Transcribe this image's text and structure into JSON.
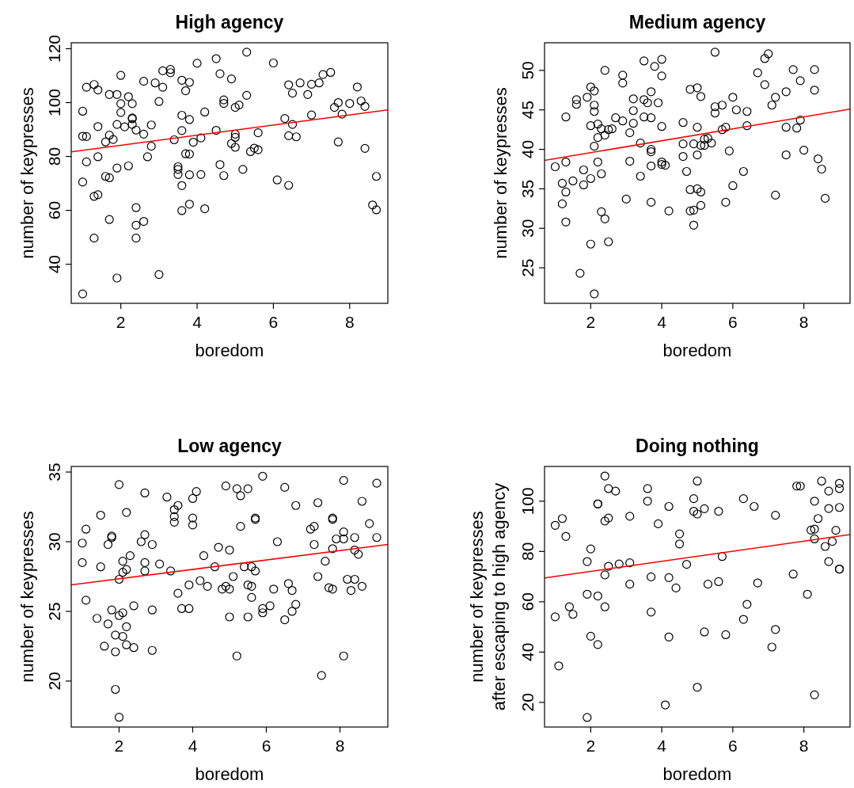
{
  "chart_data": [
    {
      "type": "scatter",
      "title": "High agency",
      "xlabel": "boredom",
      "ylabel": "number of keypresses",
      "xlim": [
        0.7,
        9.0
      ],
      "ylim": [
        25.5,
        122.2
      ],
      "xticks": [
        2,
        4,
        6,
        8
      ],
      "yticks": [
        40,
        60,
        80,
        100,
        120
      ],
      "series": [
        {
          "type": "scatter",
          "color": "#000000",
          "marker": "circle",
          "x": [
            1.0,
            1.0,
            1.1,
            1.0,
            1.0,
            1.1,
            1.3,
            1.4,
            1.4,
            1.1,
            1.4,
            1.3,
            1.4,
            1.3,
            1.6,
            1.7,
            1.9,
            1.7,
            1.8,
            1.9,
            1.6,
            1.7,
            1.9,
            1.7,
            1.9,
            2.0,
            2.0,
            2.0,
            2.1,
            2.2,
            2.3,
            2.3,
            2.3,
            2.3,
            2.4,
            2.2,
            2.4,
            2.4,
            2.4,
            2.6,
            2.6,
            2.6,
            2.8,
            2.8,
            2.7,
            2.9,
            3.1,
            3.1,
            3.0,
            3.0,
            3.3,
            3.3,
            3.4,
            3.5,
            3.5,
            3.5,
            3.6,
            3.6,
            3.6,
            3.6,
            3.6,
            3.7,
            3.7,
            3.8,
            3.8,
            3.8,
            3.8,
            3.8,
            3.9,
            4.0,
            4.1,
            4.1,
            4.2,
            4.2,
            4.5,
            4.5,
            4.6,
            4.6,
            4.7,
            4.7,
            4.7,
            4.9,
            4.9,
            5.0,
            5.0,
            5.0,
            5.0,
            5.1,
            5.2,
            5.3,
            5.3,
            5.4,
            5.5,
            5.6,
            5.6,
            6.0,
            6.1,
            6.3,
            6.4,
            6.4,
            6.4,
            6.5,
            6.5,
            6.6,
            6.7,
            6.9,
            7.0,
            7.0,
            7.2,
            7.3,
            7.5,
            7.6,
            7.7,
            7.7,
            7.8,
            8.0,
            8.2,
            8.3,
            8.4,
            8.4,
            8.6,
            8.7,
            8.7
          ],
          "values": [
            96.8,
            87.5,
            87.4,
            70.5,
            29.0,
            105.7,
            106.7,
            104.7,
            91.1,
            78.0,
            79.9,
            65.2,
            65.8,
            49.7,
            85.4,
            103.0,
            103.0,
            87.9,
            86.3,
            91.9,
            72.6,
            72.1,
            75.7,
            56.6,
            34.9,
            110.1,
            99.6,
            96.3,
            91.0,
            102.2,
            99.6,
            94.3,
            94.0,
            91.9,
            89.8,
            76.5,
            61.0,
            54.5,
            49.7,
            55.9,
            107.9,
            88.3,
            91.7,
            83.8,
            79.9,
            107.3,
            111.8,
            105.7,
            100.4,
            36.2,
            112.3,
            111.1,
            86.2,
            76.2,
            75.2,
            73.3,
            108.3,
            95.3,
            89.6,
            69.2,
            59.9,
            104.4,
            81.0,
            80.9,
            107.5,
            93.7,
            73.2,
            62.3,
            85.3,
            114.6,
            86.9,
            73.3,
            96.5,
            60.6,
            116.3,
            89.7,
            110.7,
            77.0,
            101.0,
            99.7,
            72.9,
            108.8,
            84.8,
            98.2,
            88.3,
            87.1,
            83.4,
            99.1,
            75.2,
            118.7,
            102.7,
            81.8,
            83.1,
            82.5,
            88.8,
            114.7,
            71.3,
            94.1,
            106.6,
            87.7,
            69.3,
            103.5,
            91.9,
            87.3,
            107.3,
            103.0,
            106.8,
            95.4,
            107.3,
            110.4,
            111.2,
            98.2,
            100.0,
            85.4,
            95.7,
            99.7,
            105.8,
            100.6,
            98.6,
            83.0,
            62.0,
            60.2,
            72.6
          ]
        },
        {
          "type": "line",
          "color": "#ff0000",
          "line_style": "solid",
          "x": [
            0.7,
            9.0
          ],
          "values": [
            81.7,
            97.3
          ]
        }
      ]
    },
    {
      "type": "scatter",
      "title": "Medium agency",
      "xlabel": "boredom",
      "ylabel": "number of keypresses",
      "xlim": [
        0.7,
        9.3
      ],
      "ylim": [
        20.5,
        53.5
      ],
      "xticks": [
        2,
        4,
        6,
        8
      ],
      "yticks": [
        25,
        30,
        35,
        40,
        45,
        50
      ],
      "series": [
        {
          "type": "scatter",
          "color": "#000000",
          "marker": "circle",
          "x": [
            1.0,
            1.2,
            1.2,
            1.3,
            1.3,
            1.3,
            1.3,
            1.5,
            1.6,
            1.6,
            1.7,
            1.8,
            1.8,
            1.9,
            2.0,
            2.0,
            2.0,
            2.0,
            2.1,
            2.1,
            2.1,
            2.1,
            2.1,
            2.2,
            2.2,
            2.2,
            2.3,
            2.3,
            2.3,
            2.4,
            2.4,
            2.4,
            2.5,
            2.5,
            2.6,
            2.7,
            2.9,
            2.9,
            2.9,
            3.0,
            3.1,
            3.1,
            3.2,
            3.2,
            3.2,
            3.4,
            3.4,
            3.5,
            3.5,
            3.5,
            3.6,
            3.7,
            3.7,
            3.7,
            3.7,
            3.7,
            3.7,
            3.8,
            3.9,
            4.0,
            4.0,
            4.0,
            4.0,
            4.0,
            4.1,
            4.2,
            4.6,
            4.6,
            4.6,
            4.7,
            4.8,
            4.8,
            4.8,
            4.9,
            4.9,
            4.9,
            5.0,
            5.0,
            5.0,
            5.0,
            5.1,
            5.1,
            5.1,
            5.1,
            5.2,
            5.2,
            5.3,
            5.4,
            5.5,
            5.5,
            5.5,
            5.7,
            5.7,
            5.8,
            5.8,
            5.9,
            6.0,
            6.0,
            6.1,
            6.3,
            6.4,
            6.4,
            6.7,
            6.9,
            6.9,
            7.0,
            7.1,
            7.2,
            7.2,
            7.5,
            7.5,
            7.5,
            7.7,
            7.8,
            7.9,
            7.9,
            8.0,
            8.3,
            8.3,
            8.4,
            8.5,
            8.6
          ],
          "values": [
            37.8,
            35.7,
            33.1,
            44.1,
            38.4,
            34.6,
            30.8,
            36.0,
            46.3,
            45.7,
            24.3,
            37.4,
            35.5,
            46.6,
            47.9,
            43.0,
            36.3,
            28.0,
            47.4,
            45.6,
            44.8,
            40.4,
            21.7,
            43.2,
            41.5,
            38.4,
            42.6,
            36.9,
            32.1,
            50.0,
            41.8,
            31.2,
            42.5,
            28.3,
            42.6,
            44.0,
            49.4,
            48.4,
            43.6,
            33.7,
            42.1,
            38.5,
            46.4,
            44.9,
            43.3,
            40.8,
            36.6,
            51.2,
            46.3,
            44.1,
            45.9,
            47.3,
            44.0,
            40.0,
            39.7,
            37.9,
            33.3,
            50.5,
            45.9,
            51.4,
            49.3,
            42.9,
            38.4,
            38.1,
            38.0,
            32.2,
            43.4,
            40.7,
            39.1,
            37.2,
            47.6,
            34.9,
            32.2,
            40.7,
            32.3,
            30.4,
            47.8,
            42.8,
            39.3,
            35.0,
            46.7,
            40.5,
            34.6,
            32.9,
            41.3,
            40.5,
            41.4,
            40.8,
            52.3,
            45.4,
            44.6,
            45.6,
            42.5,
            42.8,
            33.3,
            39.8,
            46.6,
            35.4,
            45.0,
            37.2,
            44.8,
            43.0,
            49.7,
            51.5,
            48.2,
            52.1,
            45.6,
            46.6,
            34.2,
            47.3,
            42.8,
            39.3,
            50.1,
            42.7,
            48.7,
            43.7,
            39.9,
            50.1,
            47.5,
            38.8,
            37.5,
            33.8
          ]
        },
        {
          "type": "line",
          "color": "#ff0000",
          "line_style": "solid",
          "x": [
            0.7,
            9.3
          ],
          "values": [
            38.6,
            45.1
          ]
        }
      ]
    },
    {
      "type": "scatter",
      "title": "Low agency",
      "xlabel": "boredom",
      "ylabel": "number of keypresses",
      "xlim": [
        0.7,
        9.3
      ],
      "ylim": [
        16.7,
        35.4
      ],
      "xticks": [
        2,
        4,
        6,
        8
      ],
      "yticks": [
        20,
        25,
        30,
        35
      ],
      "series": [
        {
          "type": "scatter",
          "color": "#000000",
          "marker": "circle",
          "x": [
            1.0,
            1.0,
            1.1,
            1.1,
            1.4,
            1.5,
            1.5,
            1.6,
            1.7,
            1.7,
            1.8,
            1.8,
            1.8,
            1.9,
            1.9,
            1.9,
            2.0,
            2.0,
            2.0,
            2.0,
            2.1,
            2.1,
            2.1,
            2.1,
            2.2,
            2.2,
            2.2,
            2.2,
            2.3,
            2.4,
            2.4,
            2.6,
            2.7,
            2.7,
            2.7,
            2.7,
            2.9,
            2.9,
            2.9,
            3.1,
            3.3,
            3.4,
            3.5,
            3.5,
            3.5,
            3.6,
            3.6,
            3.7,
            3.9,
            3.9,
            4.0,
            4.0,
            4.0,
            4.1,
            4.2,
            4.3,
            4.4,
            4.6,
            4.7,
            4.8,
            4.9,
            4.9,
            5.0,
            5.0,
            5.0,
            5.1,
            5.2,
            5.2,
            5.3,
            5.3,
            5.4,
            5.5,
            5.5,
            5.6,
            5.6,
            5.5,
            5.6,
            5.7,
            5.7,
            5.7,
            5.9,
            5.9,
            5.9,
            6.1,
            6.2,
            6.3,
            6.5,
            6.5,
            6.6,
            6.7,
            6.7,
            6.8,
            6.8,
            7.2,
            7.3,
            7.3,
            7.4,
            7.4,
            7.5,
            7.6,
            7.7,
            7.8,
            7.8,
            7.8,
            7.8,
            7.9,
            8.1,
            8.1,
            8.1,
            8.1,
            8.2,
            8.3,
            8.4,
            8.4,
            8.4,
            8.5,
            8.6,
            8.6,
            8.8,
            9.0,
            9.0
          ],
          "values": [
            29.9,
            28.5,
            30.9,
            25.8,
            24.5,
            31.9,
            28.2,
            22.5,
            24.1,
            29.8,
            30.3,
            30.4,
            25.1,
            23.3,
            22.1,
            19.4,
            34.1,
            27.3,
            24.7,
            17.4,
            28.6,
            27.8,
            24.9,
            23.2,
            32.1,
            28.0,
            22.6,
            23.9,
            29.0,
            25.4,
            22.4,
            30.0,
            33.5,
            30.5,
            28.5,
            27.9,
            29.8,
            25.1,
            22.2,
            28.4,
            33.2,
            27.9,
            31.8,
            32.3,
            31.4,
            26.3,
            32.6,
            25.2,
            26.9,
            25.2,
            33.1,
            31.7,
            31.2,
            33.6,
            27.2,
            29.0,
            26.8,
            28.2,
            29.6,
            26.6,
            34.0,
            26.8,
            29.4,
            26.6,
            24.6,
            27.5,
            33.8,
            21.8,
            33.3,
            31.1,
            28.2,
            33.8,
            26.9,
            26.8,
            26.0,
            24.6,
            28.2,
            27.9,
            31.7,
            31.6,
            34.7,
            25.2,
            24.9,
            25.4,
            26.6,
            30.0,
            24.4,
            33.9,
            27.0,
            25.0,
            26.5,
            32.6,
            25.5,
            30.9,
            29.8,
            31.1,
            32.8,
            27.5,
            20.4,
            28.6,
            26.7,
            29.5,
            31.7,
            31.6,
            26.6,
            30.2,
            30.2,
            34.4,
            30.7,
            21.8,
            27.3,
            26.5,
            29.4,
            27.3,
            30.3,
            29.1,
            32.9,
            26.8,
            31.3,
            34.2,
            30.3
          ]
        },
        {
          "type": "line",
          "color": "#ff0000",
          "line_style": "solid",
          "x": [
            0.7,
            9.3
          ],
          "values": [
            26.9,
            29.8
          ]
        }
      ]
    },
    {
      "type": "scatter",
      "title": "Doing nothing",
      "xlabel": "boredom",
      "ylabel": "number of keypresses\nafter escaping to high agency",
      "xlim": [
        0.7,
        9.3
      ],
      "ylim": [
        10.2,
        113.8
      ],
      "xticks": [
        2,
        4,
        6,
        8
      ],
      "yticks": [
        20,
        40,
        60,
        80,
        100
      ],
      "series": [
        {
          "type": "scatter",
          "color": "#000000",
          "marker": "circle",
          "x": [
            1.0,
            1.0,
            1.1,
            1.2,
            1.3,
            1.4,
            1.5,
            1.9,
            1.9,
            1.9,
            2.0,
            2.0,
            2.2,
            2.2,
            2.2,
            2.2,
            2.4,
            2.4,
            2.4,
            2.5,
            2.4,
            2.5,
            2.5,
            2.7,
            2.8,
            3.1,
            3.1,
            3.1,
            3.6,
            3.6,
            3.7,
            3.7,
            3.9,
            4.1,
            4.2,
            4.2,
            4.2,
            4.4,
            4.5,
            4.5,
            4.7,
            4.9,
            4.9,
            5.0,
            5.0,
            5.0,
            5.2,
            5.2,
            5.3,
            5.6,
            5.6,
            5.7,
            5.8,
            6.3,
            6.3,
            6.4,
            6.6,
            6.7,
            7.1,
            7.2,
            7.2,
            7.7,
            7.8,
            7.9,
            8.1,
            8.2,
            8.3,
            8.3,
            8.3,
            8.3,
            8.4,
            8.5,
            8.6,
            8.7,
            8.7,
            8.7,
            8.8,
            8.9,
            9.0,
            9.0,
            9.0,
            9.0,
            9.0
          ],
          "values": [
            90.4,
            54.0,
            34.5,
            93.1,
            86.0,
            58.0,
            55.0,
            63.0,
            14.0,
            76.0,
            81.0,
            46.3,
            98.9,
            98.9,
            62.3,
            43.0,
            110.0,
            70.7,
            58.0,
            93.3,
            92.1,
            105.0,
            74.1,
            104.0,
            75.0,
            94.0,
            75.5,
            67.0,
            100.0,
            105.0,
            55.9,
            69.9,
            91.0,
            19.0,
            46.0,
            69.6,
            97.9,
            65.5,
            83.0,
            87.0,
            74.9,
            101.0,
            96.0,
            94.9,
            108.0,
            26.0,
            48.0,
            97.0,
            67.0,
            96.0,
            68.0,
            78.0,
            46.9,
            53.0,
            101.0,
            59.0,
            97.9,
            67.5,
            42.0,
            94.4,
            49.0,
            71.0,
            106.0,
            106.0,
            63.0,
            88.5,
            88.9,
            23.0,
            100.0,
            85.0,
            93.1,
            108.0,
            82.0,
            76.0,
            104.0,
            97.1,
            84.0,
            88.4,
            73.0,
            73.0,
            107.1,
            105.0,
            97.5
          ]
        },
        {
          "type": "line",
          "color": "#ff0000",
          "line_style": "solid",
          "x": [
            0.7,
            9.3
          ],
          "values": [
            69.5,
            86.7
          ]
        }
      ]
    }
  ]
}
